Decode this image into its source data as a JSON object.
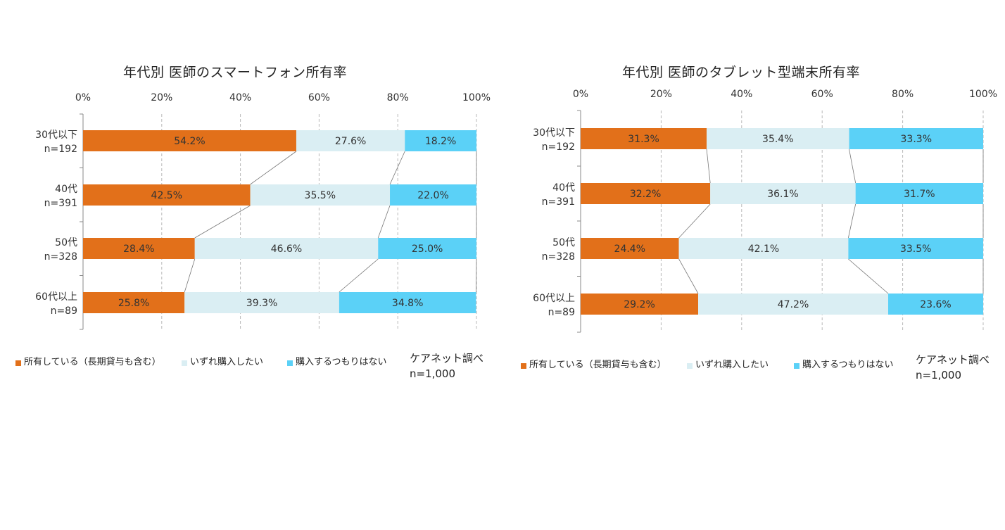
{
  "chart_data": [
    {
      "type": "bar",
      "orientation": "horizontal",
      "stacked": true,
      "normalized": true,
      "title": "年代別  医師のスマートフォン所有率",
      "categories": [
        {
          "label": "30代以下",
          "n": "n=192"
        },
        {
          "label": "40代",
          "n": "n=391"
        },
        {
          "label": "50代",
          "n": "n=328"
        },
        {
          "label": "60代以上",
          "n": "n=89"
        }
      ],
      "series": [
        {
          "name": "所有している（長期貸与も含む）",
          "color": "#E2701A",
          "values": [
            54.2,
            42.5,
            28.4,
            25.8
          ],
          "labels": [
            "54.2%",
            "42.5%",
            "28.4%",
            "25.8%"
          ]
        },
        {
          "name": "いずれ購入したい",
          "color": "#DAEEF3",
          "values": [
            27.6,
            35.5,
            46.6,
            39.3
          ],
          "labels": [
            "27.6%",
            "35.5%",
            "46.6%",
            "39.3%"
          ]
        },
        {
          "name": "購入するつもりはない",
          "color": "#5BD1F7",
          "values": [
            18.2,
            22.0,
            25.0,
            34.8
          ],
          "labels": [
            "18.2%",
            "22.0%",
            "25.0%",
            "34.8%"
          ]
        }
      ],
      "xticks": [
        "0%",
        "20%",
        "40%",
        "60%",
        "80%",
        "100%"
      ],
      "xlim": [
        0,
        100
      ],
      "grid": true,
      "legend_position": "bottom",
      "source_line1": "ケアネット調べ",
      "source_line2": "n=1,000"
    },
    {
      "type": "bar",
      "orientation": "horizontal",
      "stacked": true,
      "normalized": true,
      "title": "年代別  医師のタブレット型端末所有率",
      "categories": [
        {
          "label": "30代以下",
          "n": "n=192"
        },
        {
          "label": "40代",
          "n": "n=391"
        },
        {
          "label": "50代",
          "n": "n=328"
        },
        {
          "label": "60代以上",
          "n": "n=89"
        }
      ],
      "series": [
        {
          "name": "所有している（長期貸与も含む）",
          "color": "#E2701A",
          "values": [
            31.3,
            32.2,
            24.4,
            29.2
          ],
          "labels": [
            "31.3%",
            "32.2%",
            "24.4%",
            "29.2%"
          ]
        },
        {
          "name": "いずれ購入したい",
          "color": "#DAEEF3",
          "values": [
            35.4,
            36.1,
            42.1,
            47.2
          ],
          "labels": [
            "35.4%",
            "36.1%",
            "42.1%",
            "47.2%"
          ]
        },
        {
          "name": "購入するつもりはない",
          "color": "#5BD1F7",
          "values": [
            33.3,
            31.7,
            33.5,
            23.6
          ],
          "labels": [
            "33.3%",
            "31.7%",
            "33.5%",
            "23.6%"
          ]
        }
      ],
      "xticks": [
        "0%",
        "20%",
        "40%",
        "60%",
        "80%",
        "100%"
      ],
      "xlim": [
        0,
        100
      ],
      "grid": true,
      "legend_position": "bottom",
      "source_line1": "ケアネット調べ",
      "source_line2": "n=1,000"
    }
  ]
}
